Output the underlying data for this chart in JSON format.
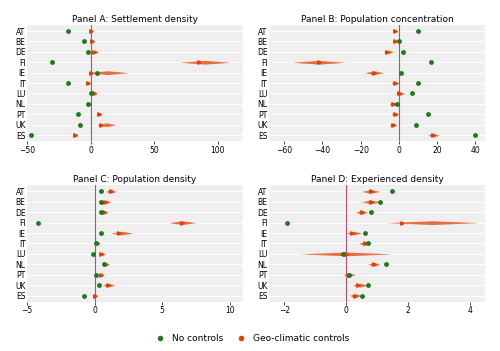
{
  "countries": [
    "AT",
    "BE",
    "DE",
    "FI",
    "IE",
    "IT",
    "LU",
    "NL",
    "PT",
    "UK",
    "ES"
  ],
  "panels": {
    "A": {
      "title": "Panel A: Settlement density",
      "xlim": [
        -50,
        120
      ],
      "xticks": [
        -50,
        0,
        50,
        100
      ],
      "green_dots": [
        -18,
        -5,
        -2,
        -30,
        5,
        -18,
        0,
        -2,
        -10,
        -8,
        -47
      ],
      "orange_center": [
        0,
        1,
        3,
        85,
        0,
        -2,
        3,
        -1,
        7,
        8,
        -12
      ],
      "orange_lo": [
        -1,
        -1,
        1,
        70,
        -3,
        -4,
        1,
        -3,
        5,
        5,
        -14
      ],
      "orange_hi": [
        1,
        3,
        6,
        110,
        30,
        0,
        5,
        1,
        9,
        20,
        -10
      ]
    },
    "B": {
      "title": "Panel B: Population concentration",
      "xlim": [
        -68,
        45
      ],
      "xticks": [
        -60,
        -40,
        -20,
        0,
        20,
        40
      ],
      "green_dots": [
        10,
        0,
        2,
        17,
        1,
        10,
        7,
        -1,
        15,
        9,
        40
      ],
      "orange_center": [
        -2,
        -2,
        -6,
        -42,
        -13,
        -2,
        0,
        -3,
        -2,
        -3,
        18
      ],
      "orange_lo": [
        -3,
        -3,
        -8,
        -56,
        -18,
        -4,
        -2,
        -5,
        -4,
        -5,
        15
      ],
      "orange_hi": [
        -1,
        -1,
        -3,
        -28,
        -8,
        0,
        3,
        -1,
        0,
        -1,
        21
      ]
    },
    "C": {
      "title": "Panel C: Population density",
      "xlim": [
        -5,
        11
      ],
      "xticks": [
        -5,
        0,
        5,
        10
      ],
      "green_dots": [
        0.5,
        0.5,
        0.5,
        -4.2,
        0.5,
        0.1,
        -0.1,
        0.7,
        0.1,
        0.3,
        -0.8
      ],
      "orange_center": [
        1.2,
        0.8,
        0.7,
        6.5,
        1.8,
        0.2,
        0.5,
        0.8,
        0.5,
        1.0,
        0.0
      ],
      "orange_lo": [
        0.8,
        0.5,
        0.4,
        5.5,
        1.2,
        0.1,
        0.3,
        0.6,
        0.3,
        0.6,
        -0.2
      ],
      "orange_hi": [
        1.6,
        1.2,
        1.0,
        7.5,
        2.8,
        0.4,
        0.8,
        1.1,
        0.7,
        1.5,
        0.2
      ]
    },
    "D": {
      "title": "Panel D: Experienced density",
      "xlim": [
        -2.5,
        4.5
      ],
      "xticks": [
        -2,
        0,
        2,
        4
      ],
      "green_dots": [
        1.5,
        1.1,
        0.8,
        -1.9,
        0.6,
        0.7,
        -0.1,
        1.3,
        0.1,
        0.7,
        0.5
      ],
      "orange_center": [
        0.8,
        0.8,
        0.5,
        1.8,
        0.2,
        0.6,
        0.0,
        0.9,
        0.1,
        0.4,
        0.3
      ],
      "orange_lo": [
        0.5,
        0.5,
        0.3,
        1.3,
        0.0,
        0.4,
        -1.5,
        0.7,
        -0.1,
        0.2,
        0.1
      ],
      "orange_hi": [
        1.1,
        1.1,
        0.7,
        4.3,
        0.5,
        0.8,
        1.5,
        1.1,
        0.3,
        0.7,
        0.5
      ]
    }
  },
  "vline_color": "#b05080",
  "orange_color": "#e04000",
  "green_color": "#1e7a1e",
  "bg_color": "#efefef",
  "legend_green": "No controls",
  "legend_orange": "Geo-climatic controls"
}
